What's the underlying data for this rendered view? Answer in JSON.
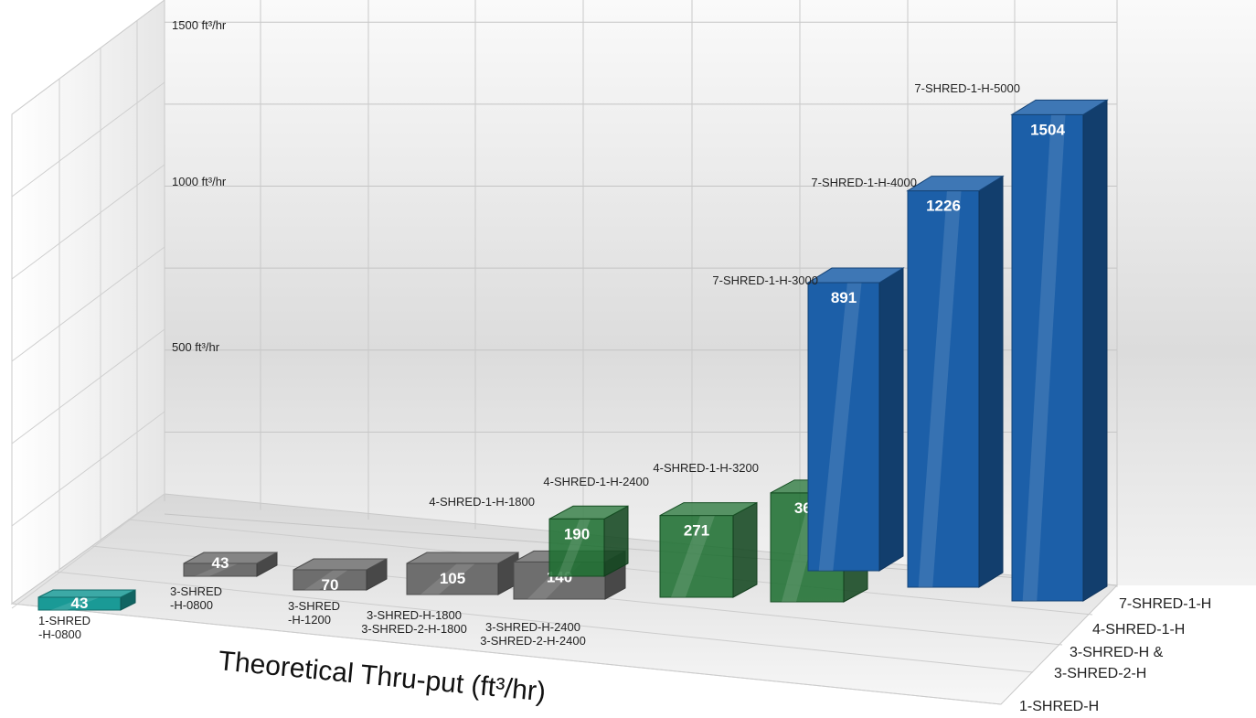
{
  "chart_data": {
    "type": "bar",
    "title": "",
    "xlabel": "Theoretical Thru-put (ft³/hr)",
    "ylabel": "",
    "ylim": [
      0,
      1500
    ],
    "y_ticks": [
      "500 ft³/hr",
      "1000 ft³/hr",
      "1500 ft³/hr"
    ],
    "grid": true,
    "series_rows": [
      "7-SHRED-1-H",
      "4-SHRED-1-H",
      "3-SHRED-H & 3-SHRED-2-H",
      "1-SHRED-H"
    ],
    "colors": {
      "1-SHRED-H": "#1a9a96",
      "3-SHRED-H & 3-SHRED-2-H": "#6e6e6e",
      "4-SHRED-1-H": "#1f6f32",
      "7-SHRED-1-H": "#1c5fa8"
    },
    "bars": [
      {
        "label": "1-SHRED\n-H-0800",
        "value": 43,
        "series": "1-SHRED-H"
      },
      {
        "label": "3-SHRED\n-H-0800",
        "value": 43,
        "series": "3-SHRED-H & 3-SHRED-2-H"
      },
      {
        "label": "3-SHRED\n-H-1200",
        "value": 70,
        "series": "3-SHRED-H & 3-SHRED-2-H"
      },
      {
        "label": "3-SHRED-H-1800\n3-SHRED-2-H-1800",
        "value": 105,
        "series": "3-SHRED-H & 3-SHRED-2-H"
      },
      {
        "label": "3-SHRED-H-2400\n3-SHRED-2-H-2400",
        "value": 140,
        "series": "3-SHRED-H & 3-SHRED-2-H"
      },
      {
        "label": "4-SHRED-1-H-1800",
        "value": 190,
        "series": "4-SHRED-1-H"
      },
      {
        "label": "4-SHRED-1-H-2400",
        "value": 271,
        "series": "4-SHRED-1-H"
      },
      {
        "label": "4-SHRED-1-H-3200",
        "value": 361,
        "series": "4-SHRED-1-H"
      },
      {
        "label": "7-SHRED-1-H-3000",
        "value": 891,
        "series": "7-SHRED-1-H"
      },
      {
        "label": "7-SHRED-1-H-4000",
        "value": 1226,
        "series": "7-SHRED-1-H"
      },
      {
        "label": "7-SHRED-1-H-5000",
        "value": 1504,
        "series": "7-SHRED-1-H"
      }
    ]
  }
}
